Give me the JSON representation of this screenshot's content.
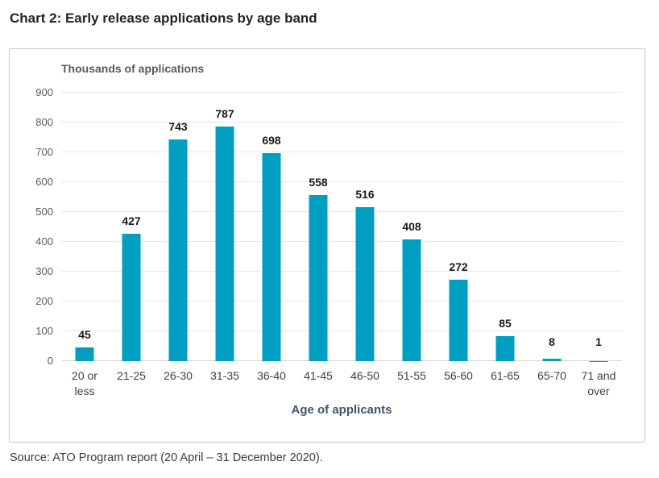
{
  "page": {
    "title": "Chart 2: Early release applications by age band",
    "source": "Source: ATO Program report (20 April – 31 December 2020)."
  },
  "chart_data": {
    "type": "bar",
    "title": "Chart 2: Early release applications by age band",
    "y_axis_title": "Thousands of applications",
    "x_axis_title": "Age of applicants",
    "categories": [
      "20 or less",
      "21-25",
      "26-30",
      "31-35",
      "36-40",
      "41-45",
      "46-50",
      "51-55",
      "56-60",
      "61-65",
      "65-70",
      "71 and over"
    ],
    "values": [
      45,
      427,
      743,
      787,
      698,
      558,
      516,
      408,
      272,
      85,
      8,
      1
    ],
    "ylim": [
      0,
      900
    ],
    "ytick_step": 100,
    "grid": true,
    "legend": "none",
    "data_labels": true,
    "colors": {
      "bar": "#009FC2",
      "gridline": "#E7E7E7",
      "axis_line": "#D4D4D4",
      "tick_label": "#595959",
      "category_label": "#414141",
      "data_label": "#1A1A1A",
      "x_axis_title": "#44546A",
      "border": "#C9C9C9"
    }
  }
}
